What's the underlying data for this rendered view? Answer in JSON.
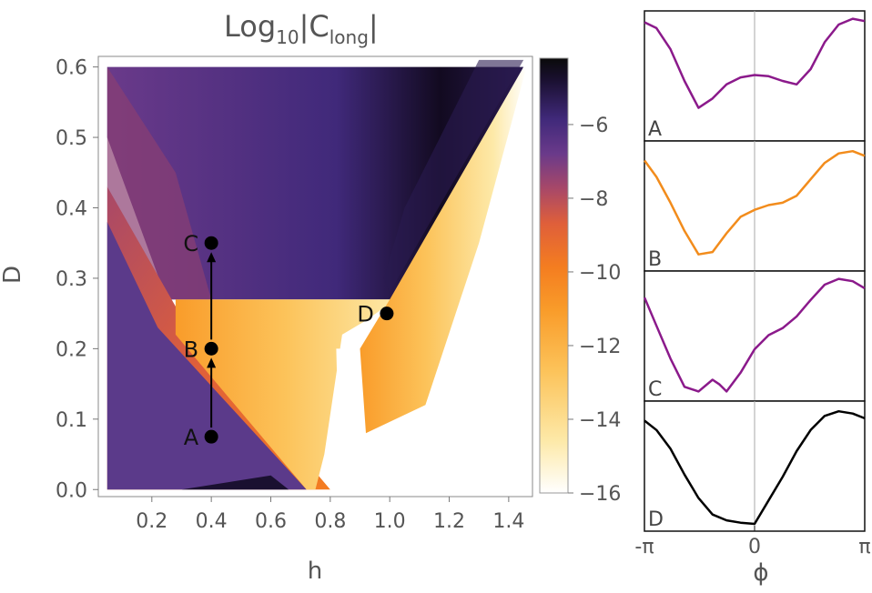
{
  "chart_data": [
    {
      "type": "heatmap",
      "title_main": "Log",
      "title_sub": "10",
      "title_rest": "|C",
      "title_sub2": "long",
      "title_end": "|",
      "xlabel": "h",
      "ylabel": "D",
      "xlim": [
        0.02,
        1.48
      ],
      "ylim": [
        -0.01,
        0.615
      ],
      "x_ticks": [
        "0.2",
        "0.4",
        "0.6",
        "0.8",
        "1.0",
        "1.2",
        "1.4"
      ],
      "x_tick_values": [
        0.2,
        0.4,
        0.6,
        0.8,
        1.0,
        1.2,
        1.4
      ],
      "y_ticks": [
        "0.0",
        "0.1",
        "0.2",
        "0.3",
        "0.4",
        "0.5",
        "0.6"
      ],
      "y_tick_values": [
        0.0,
        0.1,
        0.2,
        0.3,
        0.4,
        0.5,
        0.6
      ],
      "colorbar": {
        "range": [
          -16,
          -4.2
        ],
        "ticks": [
          "-6",
          "-8",
          "-10",
          "-12",
          "-14",
          "-16"
        ],
        "tick_values": [
          -6,
          -8,
          -10,
          -12,
          -14,
          -16
        ],
        "colormap": [
          "#ffffff",
          "#fde9a8",
          "#fcc35a",
          "#f99c2a",
          "#f47d20",
          "#df5f3a",
          "#a84868",
          "#6a3a8a",
          "#40297a",
          "#1a1030",
          "#0a0a0a"
        ]
      },
      "points": [
        {
          "label": "A",
          "h": 0.4,
          "D": 0.075
        },
        {
          "label": "B",
          "h": 0.4,
          "D": 0.2
        },
        {
          "label": "C",
          "h": 0.4,
          "D": 0.35
        },
        {
          "label": "D",
          "h": 0.99,
          "D": 0.25
        }
      ],
      "arrows": [
        {
          "from": "A",
          "to": "B"
        },
        {
          "from": "B",
          "to": "C"
        }
      ]
    },
    {
      "type": "line",
      "xlabel": "ϕ",
      "x_ticks": [
        "-π",
        "0",
        "π"
      ],
      "x_tick_values": [
        -3.14159,
        0,
        3.14159
      ],
      "panels": [
        {
          "label": "A",
          "color": "#8b1a8b",
          "x": [
            -3.14,
            -2.8,
            -2.4,
            -2.0,
            -1.6,
            -1.2,
            -0.8,
            -0.4,
            0.0,
            0.4,
            0.8,
            1.2,
            1.6,
            2.0,
            2.4,
            2.8,
            3.14
          ],
          "y": [
            0.95,
            0.9,
            0.72,
            0.45,
            0.22,
            0.3,
            0.42,
            0.48,
            0.5,
            0.49,
            0.45,
            0.42,
            0.55,
            0.78,
            0.93,
            0.98,
            0.96
          ]
        },
        {
          "label": "B",
          "color": "#f28c1c",
          "x": [
            -3.14,
            -2.8,
            -2.4,
            -2.0,
            -1.6,
            -1.2,
            -0.8,
            -0.4,
            0.0,
            0.4,
            0.8,
            1.2,
            1.6,
            2.0,
            2.4,
            2.8,
            3.14
          ],
          "y": [
            0.88,
            0.74,
            0.52,
            0.28,
            0.08,
            0.1,
            0.26,
            0.4,
            0.46,
            0.5,
            0.52,
            0.58,
            0.72,
            0.86,
            0.94,
            0.96,
            0.92
          ]
        },
        {
          "label": "C",
          "color": "#8b1a8b",
          "x": [
            -3.14,
            -2.8,
            -2.4,
            -2.0,
            -1.6,
            -1.2,
            -1.0,
            -0.8,
            -0.4,
            0.0,
            0.4,
            0.8,
            1.2,
            1.6,
            2.0,
            2.4,
            2.8,
            3.14
          ],
          "y": [
            0.82,
            0.58,
            0.3,
            0.06,
            0.02,
            0.12,
            0.08,
            0.02,
            0.18,
            0.38,
            0.5,
            0.56,
            0.66,
            0.8,
            0.93,
            0.98,
            0.96,
            0.9
          ]
        },
        {
          "label": "D",
          "color": "#000000",
          "x": [
            -3.14,
            -2.8,
            -2.4,
            -2.0,
            -1.6,
            -1.2,
            -0.8,
            -0.4,
            0.0,
            0.4,
            0.8,
            1.2,
            1.6,
            2.0,
            2.4,
            2.8,
            3.14
          ],
          "y": [
            0.88,
            0.8,
            0.64,
            0.42,
            0.22,
            0.08,
            0.03,
            0.01,
            0.0,
            0.2,
            0.4,
            0.62,
            0.8,
            0.92,
            0.96,
            0.94,
            0.9
          ]
        }
      ]
    }
  ]
}
